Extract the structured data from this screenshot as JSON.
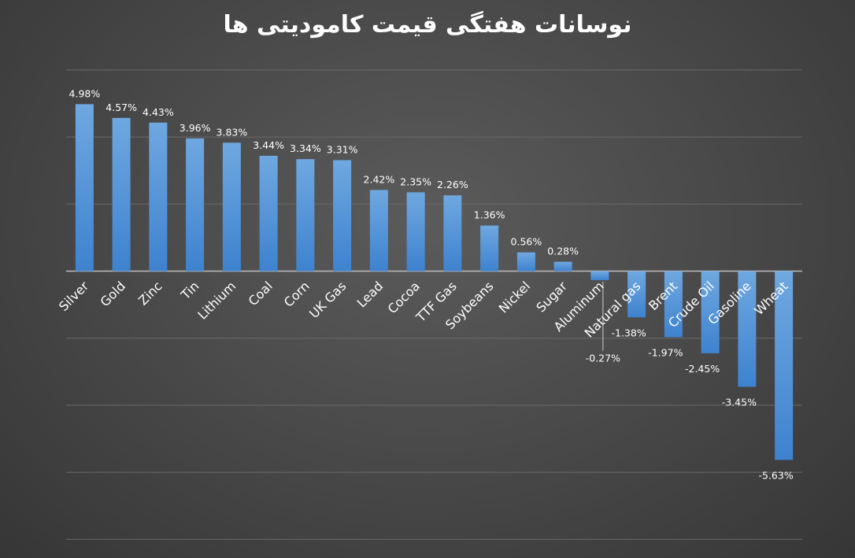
{
  "chart_data": {
    "type": "bar",
    "title": "نوسانات هفتگی قیمت کامودیتی ها",
    "xlabel": "",
    "ylabel": "",
    "ylim": [
      -8,
      6
    ],
    "grid": true,
    "categories": [
      "Silver",
      "Gold",
      "Zinc",
      "Tin",
      "Lithium",
      "Coal",
      "Corn",
      "UK Gas",
      "Lead",
      "Cocoa",
      "TTF Gas",
      "Soybeans",
      "Nickel",
      "Sugar",
      "Aluminum",
      "Natural gas",
      "Brent",
      "Crude Oil",
      "Gasoline",
      "Wheat"
    ],
    "values": [
      4.98,
      4.57,
      4.43,
      3.96,
      3.83,
      3.44,
      3.34,
      3.31,
      2.42,
      2.35,
      2.26,
      1.36,
      0.56,
      0.28,
      -0.27,
      -1.38,
      -1.97,
      -2.45,
      -3.45,
      -5.63
    ],
    "data_labels": [
      "4.98%",
      "4.57%",
      "4.43%",
      "3.96%",
      "3.83%",
      "3.44%",
      "3.34%",
      "3.31%",
      "2.42%",
      "2.35%",
      "2.26%",
      "1.36%",
      "0.56%",
      "0.28%",
      "-0.27%",
      "-1.38%",
      "-1.97%",
      "-2.45%",
      "-3.45%",
      "-5.63%"
    ],
    "colors": {
      "bar_top": "#6fa8e0",
      "bar_bottom": "#3e82cf"
    }
  }
}
